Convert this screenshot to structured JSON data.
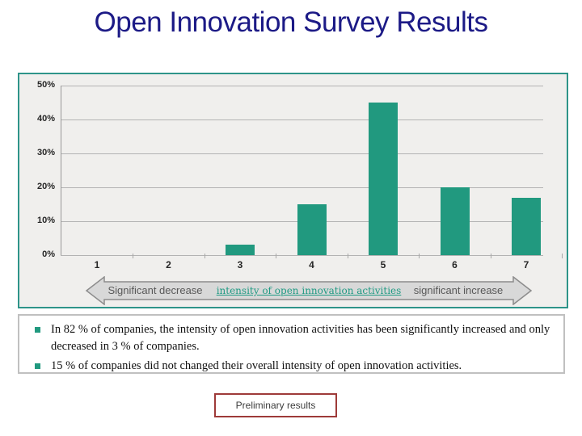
{
  "slide": {
    "title": "Open Innovation Survey Results"
  },
  "chart_data": {
    "type": "bar",
    "title": "",
    "xlabel": "",
    "ylabel": "",
    "categories": [
      "1",
      "2",
      "3",
      "4",
      "5",
      "6",
      "7"
    ],
    "values": [
      0,
      0,
      3,
      15,
      45,
      20,
      17
    ],
    "ylim": [
      0,
      50
    ],
    "yticks": [
      0,
      10,
      20,
      30,
      40,
      50
    ],
    "ytick_labels": [
      "0%",
      "10%",
      "20%",
      "30%",
      "40%",
      "50%"
    ],
    "grid": true,
    "legend": "none",
    "bar_color": "#21997f"
  },
  "axis_banner": {
    "left_label": "Significant decrease",
    "center_label": "intensity of open innovation activities",
    "right_label": "significant increase"
  },
  "bullets": [
    "In 82 % of companies, the intensity of open innovation activities has been significantly increased and only decreased in 3 % of companies.",
    "15 % of companies did not changed their overall intensity of open innovation activities."
  ],
  "footer": {
    "label": "Preliminary results"
  },
  "colors": {
    "title_text": "#1c1a86",
    "bar": "#21997f",
    "chart_border": "#2e9489",
    "chart_bg": "#f0efed",
    "gridline": "#b3b3b3",
    "arrow_fill": "#d8d8d8",
    "arrow_outline": "#8c8c8c",
    "banner_center_text": "#1f9a83",
    "banner_side_text": "#595959",
    "bullet_marker": "#21997f",
    "bullet_box_border": "#c0c0c0",
    "footer_border": "#9e3a39"
  }
}
